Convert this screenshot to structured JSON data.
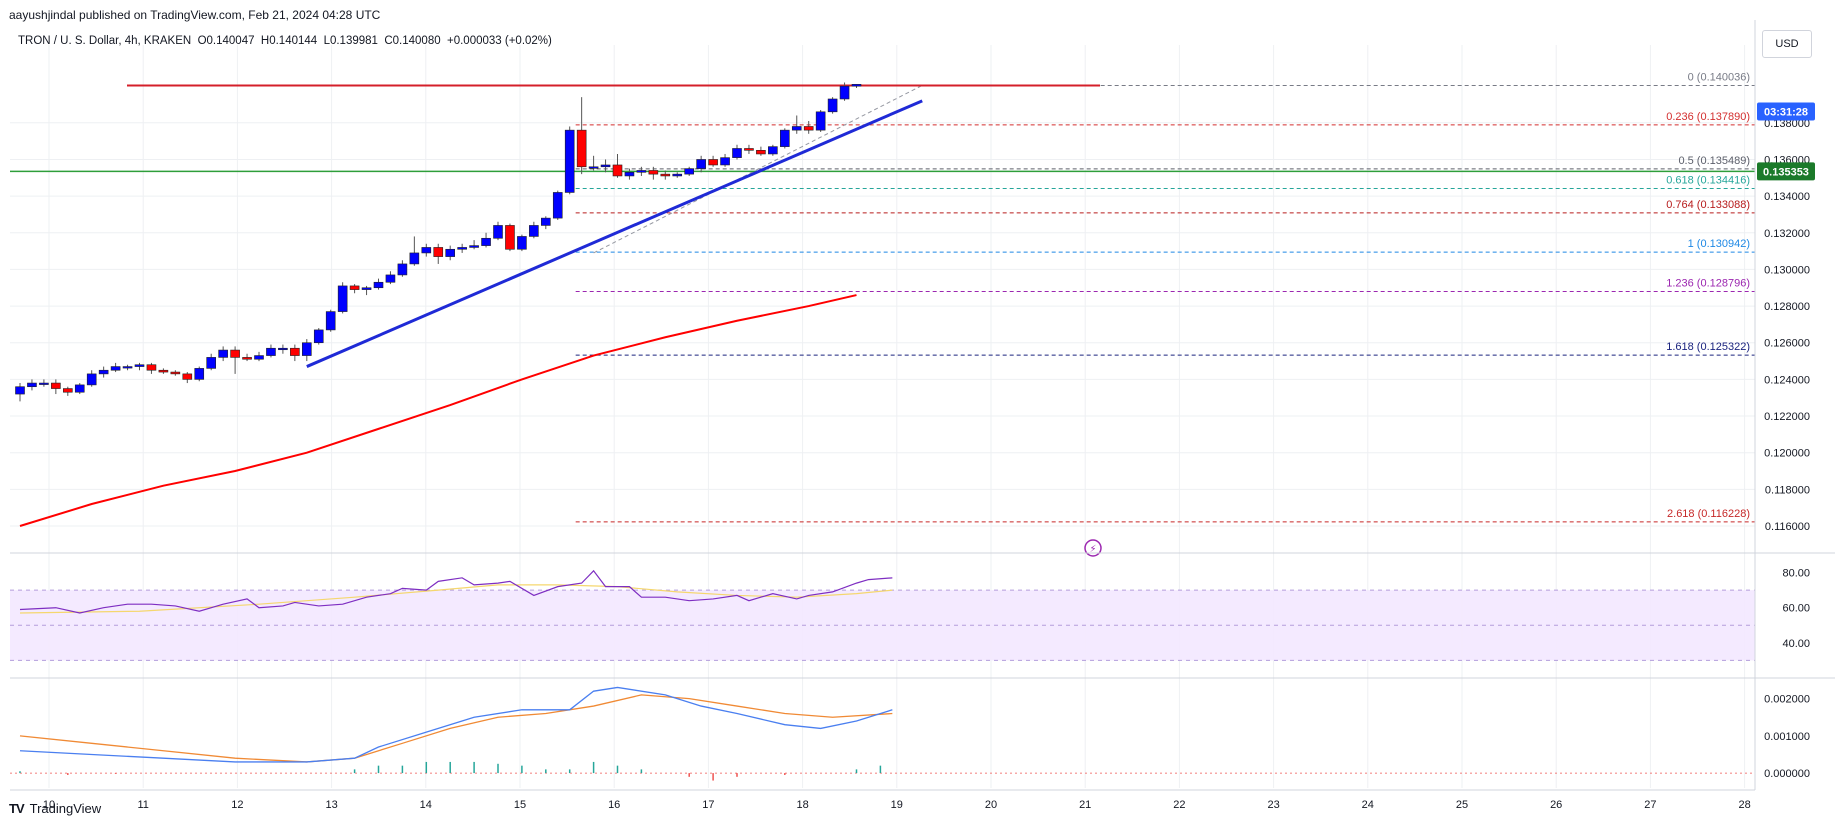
{
  "publisher": {
    "text": "aayushjindal published on TradingView.com, Feb 21, 2024 04:28 UTC"
  },
  "symbol": {
    "title": "TRON / U. S. Dollar, 4h, KRAKEN",
    "open_label": "O",
    "open": "0.140047",
    "high_label": "H",
    "high": "0.140144",
    "low_label": "L",
    "low": "0.139981",
    "close_label": "C",
    "close": "0.140080",
    "change": "+0.000033 (+0.02%)"
  },
  "currency": "USD",
  "countdown": "03:31:28",
  "brand": "TradingView",
  "colors": {
    "up": "#0000ff",
    "down": "#ff0000",
    "sma": "#ff0000",
    "trendline": "#1f2ad6",
    "support": "#2e9e3a",
    "resistance": "#d41f2a",
    "rsi": "#7e2ec2",
    "rsi_ma": "#f5d76e",
    "macd": "#4a7ff0",
    "signal": "#f08a35",
    "hist": "#26a69a"
  },
  "chart_data": {
    "type": "candlestick",
    "x_tick_labels": [
      "10",
      "11",
      "12",
      "13",
      "14",
      "15",
      "16",
      "17",
      "18",
      "19",
      "20",
      "21",
      "22",
      "23",
      "24",
      "25",
      "26",
      "27",
      "28"
    ],
    "price_axis": {
      "ticks": [
        "0.138000",
        "0.136000",
        "0.134000",
        "0.132000",
        "0.130000",
        "0.128000",
        "0.126000",
        "0.124000",
        "0.122000",
        "0.120000",
        "0.118000",
        "0.116000"
      ],
      "ylim": [
        0.1148,
        0.1417
      ],
      "current_price": "0.140036",
      "horizontal_level": "0.135353"
    },
    "candles": [
      [
        0.1232,
        0.1238,
        0.1228,
        0.1236
      ],
      [
        0.1236,
        0.124,
        0.1234,
        0.1238
      ],
      [
        0.1238,
        0.124,
        0.1236,
        0.1238
      ],
      [
        0.1238,
        0.124,
        0.1232,
        0.1235
      ],
      [
        0.1235,
        0.1236,
        0.1231,
        0.1233
      ],
      [
        0.1233,
        0.1238,
        0.1232,
        0.1237
      ],
      [
        0.1237,
        0.1245,
        0.1236,
        0.1243
      ],
      [
        0.1243,
        0.1247,
        0.1241,
        0.1245
      ],
      [
        0.1245,
        0.1249,
        0.1244,
        0.1247
      ],
      [
        0.1247,
        0.1248,
        0.1245,
        0.1247
      ],
      [
        0.1247,
        0.1249,
        0.1245,
        0.1248
      ],
      [
        0.1248,
        0.1249,
        0.1243,
        0.1245
      ],
      [
        0.1245,
        0.1246,
        0.1243,
        0.1244
      ],
      [
        0.1244,
        0.1245,
        0.1242,
        0.1243
      ],
      [
        0.1243,
        0.1244,
        0.1238,
        0.124
      ],
      [
        0.124,
        0.1247,
        0.1239,
        0.1246
      ],
      [
        0.1246,
        0.1254,
        0.1245,
        0.1252
      ],
      [
        0.1252,
        0.1258,
        0.125,
        0.1256
      ],
      [
        0.1256,
        0.1258,
        0.1243,
        0.1252
      ],
      [
        0.1252,
        0.1254,
        0.125,
        0.1251
      ],
      [
        0.1251,
        0.1255,
        0.125,
        0.1253
      ],
      [
        0.1253,
        0.1259,
        0.1252,
        0.1257
      ],
      [
        0.1257,
        0.1259,
        0.1254,
        0.1257
      ],
      [
        0.1257,
        0.1259,
        0.125,
        0.1253
      ],
      [
        0.1253,
        0.1262,
        0.125,
        0.126
      ],
      [
        0.126,
        0.1268,
        0.1259,
        0.1267
      ],
      [
        0.1267,
        0.1278,
        0.1266,
        0.1277
      ],
      [
        0.1277,
        0.1293,
        0.1276,
        0.1291
      ],
      [
        0.1291,
        0.1292,
        0.1287,
        0.1289
      ],
      [
        0.1289,
        0.1291,
        0.1286,
        0.129
      ],
      [
        0.129,
        0.1295,
        0.1289,
        0.1293
      ],
      [
        0.1293,
        0.1299,
        0.1292,
        0.1297
      ],
      [
        0.1297,
        0.1305,
        0.1296,
        0.1303
      ],
      [
        0.1303,
        0.1318,
        0.1302,
        0.1309
      ],
      [
        0.1309,
        0.1314,
        0.1307,
        0.1312
      ],
      [
        0.1312,
        0.1314,
        0.1303,
        0.1307
      ],
      [
        0.1307,
        0.1313,
        0.1305,
        0.1311
      ],
      [
        0.1311,
        0.1314,
        0.1309,
        0.1312
      ],
      [
        0.1312,
        0.1316,
        0.1311,
        0.1313
      ],
      [
        0.1313,
        0.132,
        0.1312,
        0.1317
      ],
      [
        0.1317,
        0.1326,
        0.1316,
        0.1324
      ],
      [
        0.1324,
        0.1325,
        0.131,
        0.1311
      ],
      [
        0.1311,
        0.1319,
        0.131,
        0.1318
      ],
      [
        0.1318,
        0.1326,
        0.1317,
        0.1324
      ],
      [
        0.1324,
        0.1329,
        0.1322,
        0.1328
      ],
      [
        0.1328,
        0.1343,
        0.1327,
        0.1342
      ],
      [
        0.1342,
        0.1378,
        0.1341,
        0.1376
      ],
      [
        0.1376,
        0.1394,
        0.1352,
        0.1356
      ],
      [
        0.1356,
        0.1362,
        0.1354,
        0.1356
      ],
      [
        0.1356,
        0.136,
        0.1353,
        0.1357
      ],
      [
        0.1357,
        0.1363,
        0.135,
        0.1351
      ],
      [
        0.1351,
        0.1355,
        0.1349,
        0.1353
      ],
      [
        0.1353,
        0.1356,
        0.1351,
        0.1354
      ],
      [
        0.1354,
        0.1356,
        0.1349,
        0.1352
      ],
      [
        0.1352,
        0.1354,
        0.1349,
        0.1351
      ],
      [
        0.1351,
        0.1353,
        0.135,
        0.1352
      ],
      [
        0.1352,
        0.1356,
        0.1351,
        0.1355
      ],
      [
        0.1355,
        0.1362,
        0.1353,
        0.136
      ],
      [
        0.136,
        0.1362,
        0.1356,
        0.1357
      ],
      [
        0.1357,
        0.1363,
        0.1356,
        0.1361
      ],
      [
        0.1361,
        0.1368,
        0.136,
        0.1366
      ],
      [
        0.1366,
        0.1368,
        0.1363,
        0.1365
      ],
      [
        0.1365,
        0.1367,
        0.1362,
        0.1363
      ],
      [
        0.1363,
        0.1368,
        0.1362,
        0.1367
      ],
      [
        0.1367,
        0.1377,
        0.1366,
        0.1376
      ],
      [
        0.1376,
        0.1384,
        0.1374,
        0.1378
      ],
      [
        0.1378,
        0.1381,
        0.1374,
        0.1376
      ],
      [
        0.1376,
        0.1387,
        0.1375,
        0.1386
      ],
      [
        0.1386,
        0.1394,
        0.1385,
        0.1393
      ],
      [
        0.1393,
        0.1402,
        0.1392,
        0.14
      ],
      [
        0.14,
        0.1401,
        0.1399,
        0.1401
      ]
    ],
    "sma": [
      [
        0,
        0.116
      ],
      [
        6,
        0.1172
      ],
      [
        12,
        0.1182
      ],
      [
        18,
        0.119
      ],
      [
        24,
        0.12
      ],
      [
        30,
        0.1213
      ],
      [
        36,
        0.1226
      ],
      [
        42,
        0.124
      ],
      [
        48,
        0.1253
      ],
      [
        54,
        0.1263
      ],
      [
        60,
        0.1272
      ],
      [
        66,
        0.128
      ],
      [
        70,
        0.1286
      ]
    ],
    "trendline": [
      [
        24,
        0.1247
      ],
      [
        75.5,
        0.1392
      ]
    ],
    "fibonacci": [
      {
        "ratio": "0",
        "value": "0.140036",
        "color": "#787b86"
      },
      {
        "ratio": "0.236",
        "value": "0.137890",
        "color": "#d32f2f"
      },
      {
        "ratio": "0.5",
        "value": "0.135489",
        "color": "#5d606b"
      },
      {
        "ratio": "0.618",
        "value": "0.134416",
        "color": "#26a69a"
      },
      {
        "ratio": "0.764",
        "value": "0.133088",
        "color": "#b71c1c"
      },
      {
        "ratio": "1",
        "value": "0.130942",
        "color": "#1e88e5"
      },
      {
        "ratio": "1.236",
        "value": "0.128796",
        "color": "#9c27b0"
      },
      {
        "ratio": "1.618",
        "value": "0.125322",
        "color": "#1a237e"
      },
      {
        "ratio": "2.618",
        "value": "0.116228",
        "color": "#c62828"
      }
    ],
    "rsi": {
      "ticks": [
        "80.00",
        "60.00",
        "40.00"
      ],
      "ylim": [
        20,
        90
      ],
      "band": [
        30,
        70
      ],
      "values": [
        [
          0,
          59
        ],
        [
          3,
          60
        ],
        [
          5,
          57
        ],
        [
          7,
          60
        ],
        [
          9,
          62
        ],
        [
          11,
          62
        ],
        [
          13,
          61
        ],
        [
          15,
          58
        ],
        [
          17,
          62
        ],
        [
          19,
          65
        ],
        [
          20,
          60
        ],
        [
          22,
          61
        ],
        [
          23,
          63
        ],
        [
          25,
          61
        ],
        [
          27,
          62
        ],
        [
          29,
          66
        ],
        [
          31,
          68
        ],
        [
          32,
          71
        ],
        [
          34,
          70
        ],
        [
          35,
          75
        ],
        [
          37,
          77
        ],
        [
          38,
          73
        ],
        [
          40,
          74
        ],
        [
          41,
          75
        ],
        [
          43,
          67
        ],
        [
          45,
          72
        ],
        [
          47,
          74
        ],
        [
          48,
          81
        ],
        [
          49,
          72
        ],
        [
          51,
          72
        ],
        [
          52,
          66
        ],
        [
          54,
          66
        ],
        [
          56,
          64
        ],
        [
          58,
          65
        ],
        [
          60,
          67
        ],
        [
          61,
          64
        ],
        [
          63,
          68
        ],
        [
          65,
          65
        ],
        [
          66,
          67
        ],
        [
          68,
          69
        ],
        [
          70,
          74
        ],
        [
          71,
          76
        ],
        [
          73,
          77
        ]
      ],
      "ma": [
        [
          0,
          57
        ],
        [
          10,
          58
        ],
        [
          20,
          62
        ],
        [
          28,
          66
        ],
        [
          35,
          70
        ],
        [
          40,
          73
        ],
        [
          45,
          73
        ],
        [
          50,
          72
        ],
        [
          55,
          69
        ],
        [
          60,
          67
        ],
        [
          65,
          66
        ],
        [
          70,
          68
        ],
        [
          73,
          70
        ]
      ]
    },
    "macd": {
      "ticks": [
        "0.002000",
        "0.001000",
        "0.000000"
      ],
      "ylim": [
        -0.0004,
        0.0025
      ],
      "macd": [
        [
          0,
          0.0006
        ],
        [
          6,
          0.0005
        ],
        [
          12,
          0.0004
        ],
        [
          18,
          0.0003
        ],
        [
          24,
          0.0003
        ],
        [
          28,
          0.0004
        ],
        [
          30,
          0.0007
        ],
        [
          34,
          0.0011
        ],
        [
          38,
          0.0015
        ],
        [
          42,
          0.0017
        ],
        [
          46,
          0.0017
        ],
        [
          48,
          0.0022
        ],
        [
          50,
          0.0023
        ],
        [
          54,
          0.0021
        ],
        [
          57,
          0.0018
        ],
        [
          60,
          0.0016
        ],
        [
          64,
          0.0013
        ],
        [
          67,
          0.0012
        ],
        [
          70,
          0.0014
        ],
        [
          73,
          0.0017
        ]
      ],
      "signal": [
        [
          0,
          0.001
        ],
        [
          6,
          0.0008
        ],
        [
          12,
          0.0006
        ],
        [
          18,
          0.0004
        ],
        [
          24,
          0.0003
        ],
        [
          28,
          0.0004
        ],
        [
          32,
          0.0008
        ],
        [
          36,
          0.0012
        ],
        [
          40,
          0.0015
        ],
        [
          44,
          0.0016
        ],
        [
          48,
          0.0018
        ],
        [
          52,
          0.0021
        ],
        [
          56,
          0.002
        ],
        [
          60,
          0.0018
        ],
        [
          64,
          0.0016
        ],
        [
          68,
          0.0015
        ],
        [
          73,
          0.0016
        ]
      ],
      "hist": [
        [
          0,
          5e-05
        ],
        [
          4,
          -5e-05
        ],
        [
          8,
          -2e-05
        ],
        [
          28,
          0.0001
        ],
        [
          30,
          0.0002
        ],
        [
          32,
          0.0002
        ],
        [
          34,
          0.0003
        ],
        [
          36,
          0.0003
        ],
        [
          38,
          0.0003
        ],
        [
          40,
          0.00025
        ],
        [
          42,
          0.0002
        ],
        [
          44,
          0.0001
        ],
        [
          46,
          0.0001
        ],
        [
          48,
          0.0003
        ],
        [
          50,
          0.0002
        ],
        [
          52,
          0.0001
        ],
        [
          56,
          -0.0001
        ],
        [
          58,
          -0.0002
        ],
        [
          60,
          -0.0001
        ],
        [
          64,
          -5e-05
        ],
        [
          70,
          0.0001
        ],
        [
          72,
          0.0002
        ]
      ]
    }
  }
}
